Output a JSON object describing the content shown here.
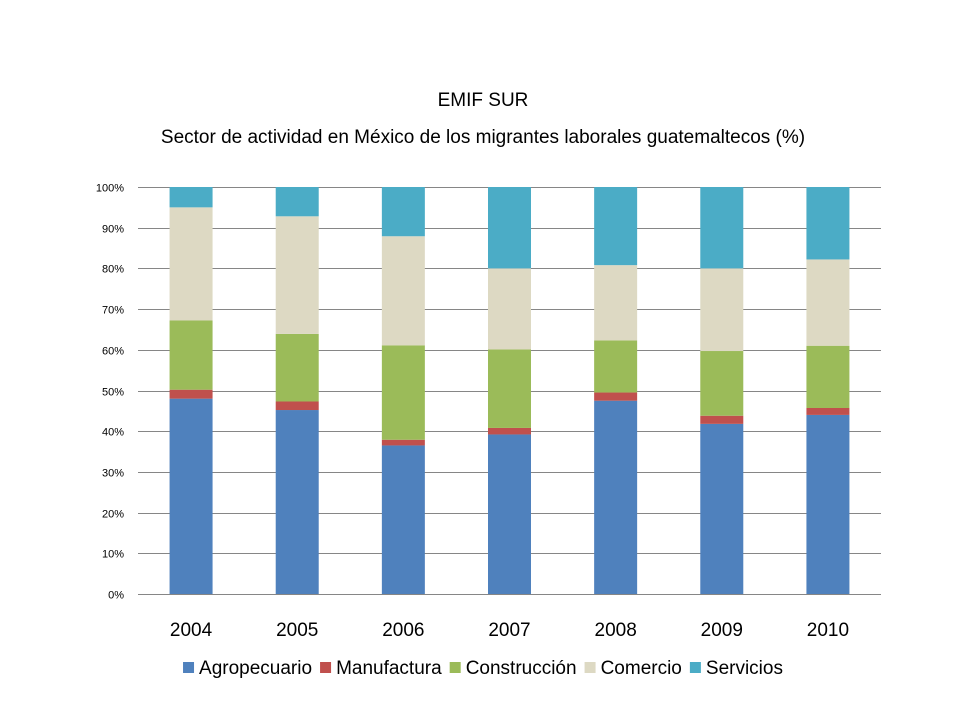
{
  "chart_data": {
    "type": "bar",
    "stacked": true,
    "percent_stacked": true,
    "title": "EMIF SUR",
    "subtitle": "Sector de actividad en México de los migrantes laborales guatemaltecos (%)",
    "xlabel": "",
    "ylabel": "",
    "categories": [
      "2004",
      "2005",
      "2006",
      "2007",
      "2008",
      "2009",
      "2010"
    ],
    "ylim": [
      0,
      100
    ],
    "yticks": [
      {
        "value": 0,
        "label": "0%"
      },
      {
        "value": 10,
        "label": "10%"
      },
      {
        "value": 20,
        "label": "20%"
      },
      {
        "value": 30,
        "label": "30%"
      },
      {
        "value": 40,
        "label": "40%"
      },
      {
        "value": 50,
        "label": "50%"
      },
      {
        "value": 60,
        "label": "60%"
      },
      {
        "value": 70,
        "label": "70%"
      },
      {
        "value": 80,
        "label": "80%"
      },
      {
        "value": 90,
        "label": "90%"
      },
      {
        "value": 100,
        "label": "100%"
      }
    ],
    "grid": true,
    "legend_position": "bottom",
    "series": [
      {
        "name": "Agropecuario",
        "color": "#4F81BD",
        "values": [
          48.0,
          45.2,
          36.5,
          39.2,
          47.5,
          41.8,
          44.0
        ]
      },
      {
        "name": "Manufactura",
        "color": "#C0504D",
        "values": [
          2.2,
          2.1,
          1.4,
          1.6,
          2.0,
          2.0,
          1.7
        ]
      },
      {
        "name": "Construcción",
        "color": "#9BBB59",
        "values": [
          17.0,
          16.6,
          23.2,
          19.3,
          12.8,
          15.9,
          15.3
        ]
      },
      {
        "name": "Comercio",
        "color": "#DDD9C3",
        "values": [
          27.8,
          28.9,
          26.8,
          19.9,
          18.5,
          20.3,
          21.2
        ]
      },
      {
        "name": "Servicios",
        "color": "#4BACC6",
        "values": [
          5.0,
          7.2,
          12.1,
          20.0,
          19.2,
          20.0,
          17.8
        ]
      }
    ]
  }
}
